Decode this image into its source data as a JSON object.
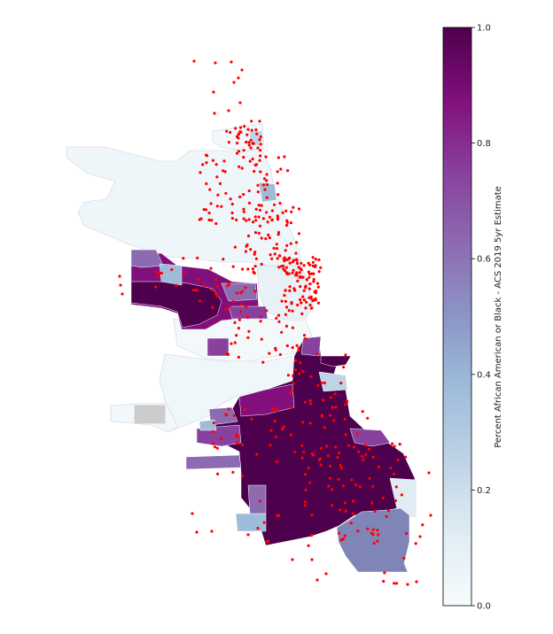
{
  "colorbar": {
    "label": "Percent African American or Black - ACS 2019 5yr Estimate",
    "ticks": [
      "0.0",
      "0.2",
      "0.4",
      "0.6",
      "0.8",
      "1.0"
    ],
    "min": 0.0,
    "max": 1.0,
    "colormap": "BuPu",
    "stops": [
      "#f7fcfd",
      "#e0ecf4",
      "#bfd3e6",
      "#9ebcda",
      "#8c96c6",
      "#8c6bb1",
      "#88419d",
      "#810f7c",
      "#4d004b"
    ]
  },
  "map": {
    "point_color": "#ff0000",
    "missing_color": "#cccccc"
  }
}
